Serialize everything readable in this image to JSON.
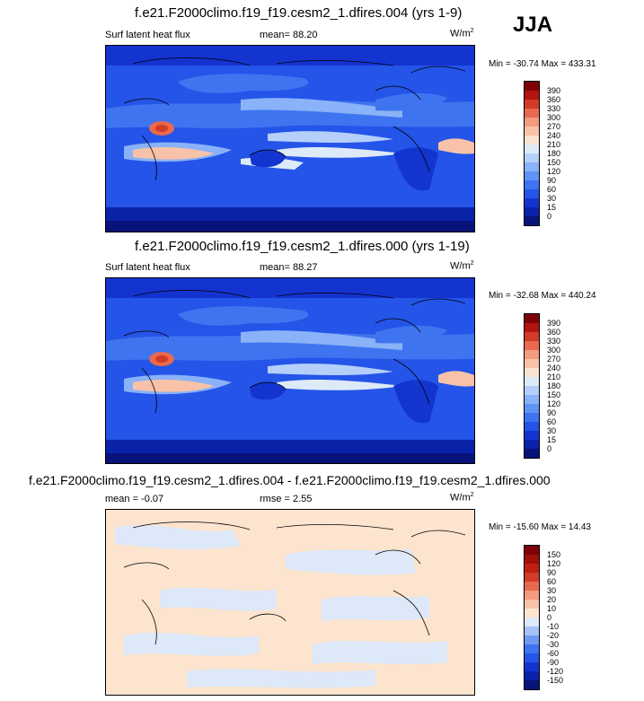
{
  "season": "JJA",
  "panels": [
    {
      "title": "f.e21.F2000climo.f19_f19.cesm2_1.dfires.004 (yrs 1-9)",
      "variable": "Surf latent heat flux",
      "stat1": "mean=  88.20",
      "stat2": "",
      "units": "W/m",
      "units_exp": "2",
      "minmax": "Min = -30.74 Max = 433.31",
      "levels": [
        "0",
        "15",
        "30",
        "60",
        "90",
        "120",
        "150",
        "180",
        "210",
        "240",
        "270",
        "300",
        "330",
        "360",
        "390"
      ],
      "colors": [
        "#08137a",
        "#0a22a8",
        "#1434d0",
        "#2454e8",
        "#3f74f0",
        "#5f93f5",
        "#89b2f8",
        "#b4cffa",
        "#ddeaf7",
        "#fbe3d2",
        "#f8c2a8",
        "#f39a7f",
        "#e8694f",
        "#d23b26",
        "#b3140f",
        "#7e0208"
      ]
    },
    {
      "title": "f.e21.F2000climo.f19_f19.cesm2_1.dfires.000 (yrs 1-19)",
      "variable": "Surf latent heat flux",
      "stat1": "mean=  88.27",
      "stat2": "",
      "units": "W/m",
      "units_exp": "2",
      "minmax": "Min = -32.68 Max = 440.24",
      "levels": [
        "0",
        "15",
        "30",
        "60",
        "90",
        "120",
        "150",
        "180",
        "210",
        "240",
        "270",
        "300",
        "330",
        "360",
        "390"
      ],
      "colors": [
        "#08137a",
        "#0a22a8",
        "#1434d0",
        "#2454e8",
        "#3f74f0",
        "#5f93f5",
        "#89b2f8",
        "#b4cffa",
        "#ddeaf7",
        "#fbe3d2",
        "#f8c2a8",
        "#f39a7f",
        "#e8694f",
        "#d23b26",
        "#b3140f",
        "#7e0208"
      ]
    },
    {
      "title": "f.e21.F2000climo.f19_f19.cesm2_1.dfires.004 - f.e21.F2000climo.f19_f19.cesm2_1.dfires.000",
      "variable": "",
      "stat1": "mean =  -0.07",
      "stat2": "rmse =   2.55",
      "units": "W/m",
      "units_exp": "2",
      "minmax": "Min = -15.60 Max =  14.43",
      "levels": [
        "-150",
        "-120",
        "-90",
        "-60",
        "-30",
        "-20",
        "-10",
        "0",
        "10",
        "20",
        "30",
        "60",
        "90",
        "120",
        "150"
      ],
      "colors": [
        "#08137a",
        "#0a22a8",
        "#1434d0",
        "#2454e8",
        "#3f74f0",
        "#6f98f3",
        "#a6c2f7",
        "#dde8f8",
        "#fde4cf",
        "#f8c2a8",
        "#f39a7f",
        "#e8694f",
        "#d23b26",
        "#c0200f",
        "#a0100a",
        "#7e0208"
      ]
    }
  ],
  "chart_data": [
    {
      "type": "heatmap",
      "title": "f.e21.F2000climo.f19_f19.cesm2_1.dfires.004 (yrs 1-9)",
      "subtitle": "Surf latent heat flux",
      "season": "JJA",
      "mean": 88.2,
      "min": -30.74,
      "max": 433.31,
      "units": "W/m2",
      "contour_levels": [
        0,
        15,
        30,
        60,
        90,
        120,
        150,
        180,
        210,
        240,
        270,
        300,
        330,
        360,
        390
      ]
    },
    {
      "type": "heatmap",
      "title": "f.e21.F2000climo.f19_f19.cesm2_1.dfires.000 (yrs 1-19)",
      "subtitle": "Surf latent heat flux",
      "season": "JJA",
      "mean": 88.27,
      "min": -32.68,
      "max": 440.24,
      "units": "W/m2",
      "contour_levels": [
        0,
        15,
        30,
        60,
        90,
        120,
        150,
        180,
        210,
        240,
        270,
        300,
        330,
        360,
        390
      ]
    },
    {
      "type": "heatmap",
      "title": "f.e21.F2000climo.f19_f19.cesm2_1.dfires.004 - f.e21.F2000climo.f19_f19.cesm2_1.dfires.000",
      "season": "JJA",
      "mean": -0.07,
      "rmse": 2.55,
      "min": -15.6,
      "max": 14.43,
      "units": "W/m2",
      "contour_levels": [
        -150,
        -120,
        -90,
        -60,
        -30,
        -20,
        -10,
        0,
        10,
        20,
        30,
        60,
        90,
        120,
        150
      ]
    }
  ]
}
